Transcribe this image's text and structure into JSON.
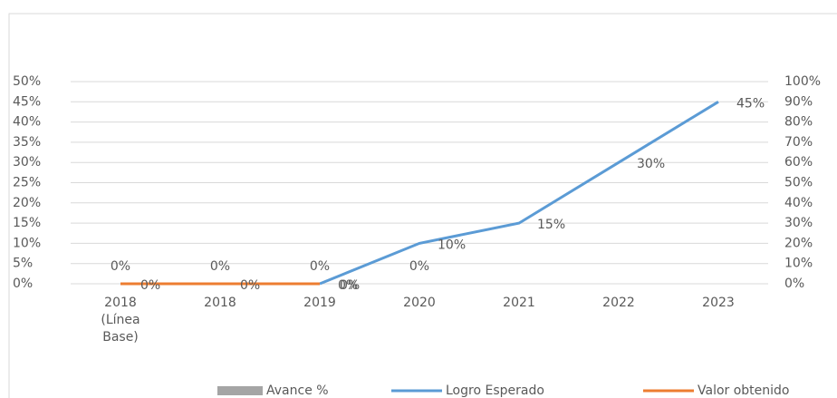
{
  "chart_data": {
    "type": "line",
    "categories": [
      "2018 (Línea Base)",
      "2018",
      "2019",
      "2020",
      "2021",
      "2022",
      "2023"
    ],
    "series": [
      {
        "name": "Avance %",
        "color": "#a5a5a5",
        "kind": "bar",
        "values": [
          0,
          0,
          0,
          0,
          null,
          null,
          null
        ],
        "value_labels": [
          "0%",
          "0%",
          "0%",
          "0%",
          null,
          null,
          null
        ]
      },
      {
        "name": "Logro Esperado",
        "color": "#5b9bd5",
        "values": [
          null,
          null,
          0,
          10,
          15,
          30,
          45
        ],
        "value_labels": [
          null,
          null,
          "0%",
          "10%",
          "15%",
          "30%",
          "45%"
        ]
      },
      {
        "name": "Valor obtenido",
        "color": "#ed7d31",
        "values": [
          0,
          0,
          0,
          null,
          null,
          null,
          null
        ],
        "value_labels": [
          "0%",
          "0%",
          "0%",
          null,
          null,
          null,
          null
        ]
      }
    ],
    "ylim": [
      0,
      50
    ],
    "yticks": [
      {
        "value": 0,
        "label": "0%"
      },
      {
        "value": 5,
        "label": "5%"
      },
      {
        "value": 10,
        "label": "10%"
      },
      {
        "value": 15,
        "label": "15%"
      },
      {
        "value": 20,
        "label": "20%"
      },
      {
        "value": 25,
        "label": "25%"
      },
      {
        "value": 30,
        "label": "30%"
      },
      {
        "value": 35,
        "label": "35%"
      },
      {
        "value": 40,
        "label": "40%"
      },
      {
        "value": 45,
        "label": "45%"
      },
      {
        "value": 50,
        "label": "50%"
      }
    ],
    "y2lim": [
      0,
      100
    ],
    "y2ticks": [
      {
        "value": 0,
        "label": "0%"
      },
      {
        "value": 10,
        "label": "10%"
      },
      {
        "value": 20,
        "label": "20%"
      },
      {
        "value": 30,
        "label": "30%"
      },
      {
        "value": 40,
        "label": "40%"
      },
      {
        "value": 50,
        "label": "50%"
      },
      {
        "value": 60,
        "label": "60%"
      },
      {
        "value": 70,
        "label": "70%"
      },
      {
        "value": 80,
        "label": "80%"
      },
      {
        "value": 90,
        "label": "90%"
      },
      {
        "value": 100,
        "label": "100%"
      }
    ],
    "grid": true,
    "legend": "bottom"
  }
}
